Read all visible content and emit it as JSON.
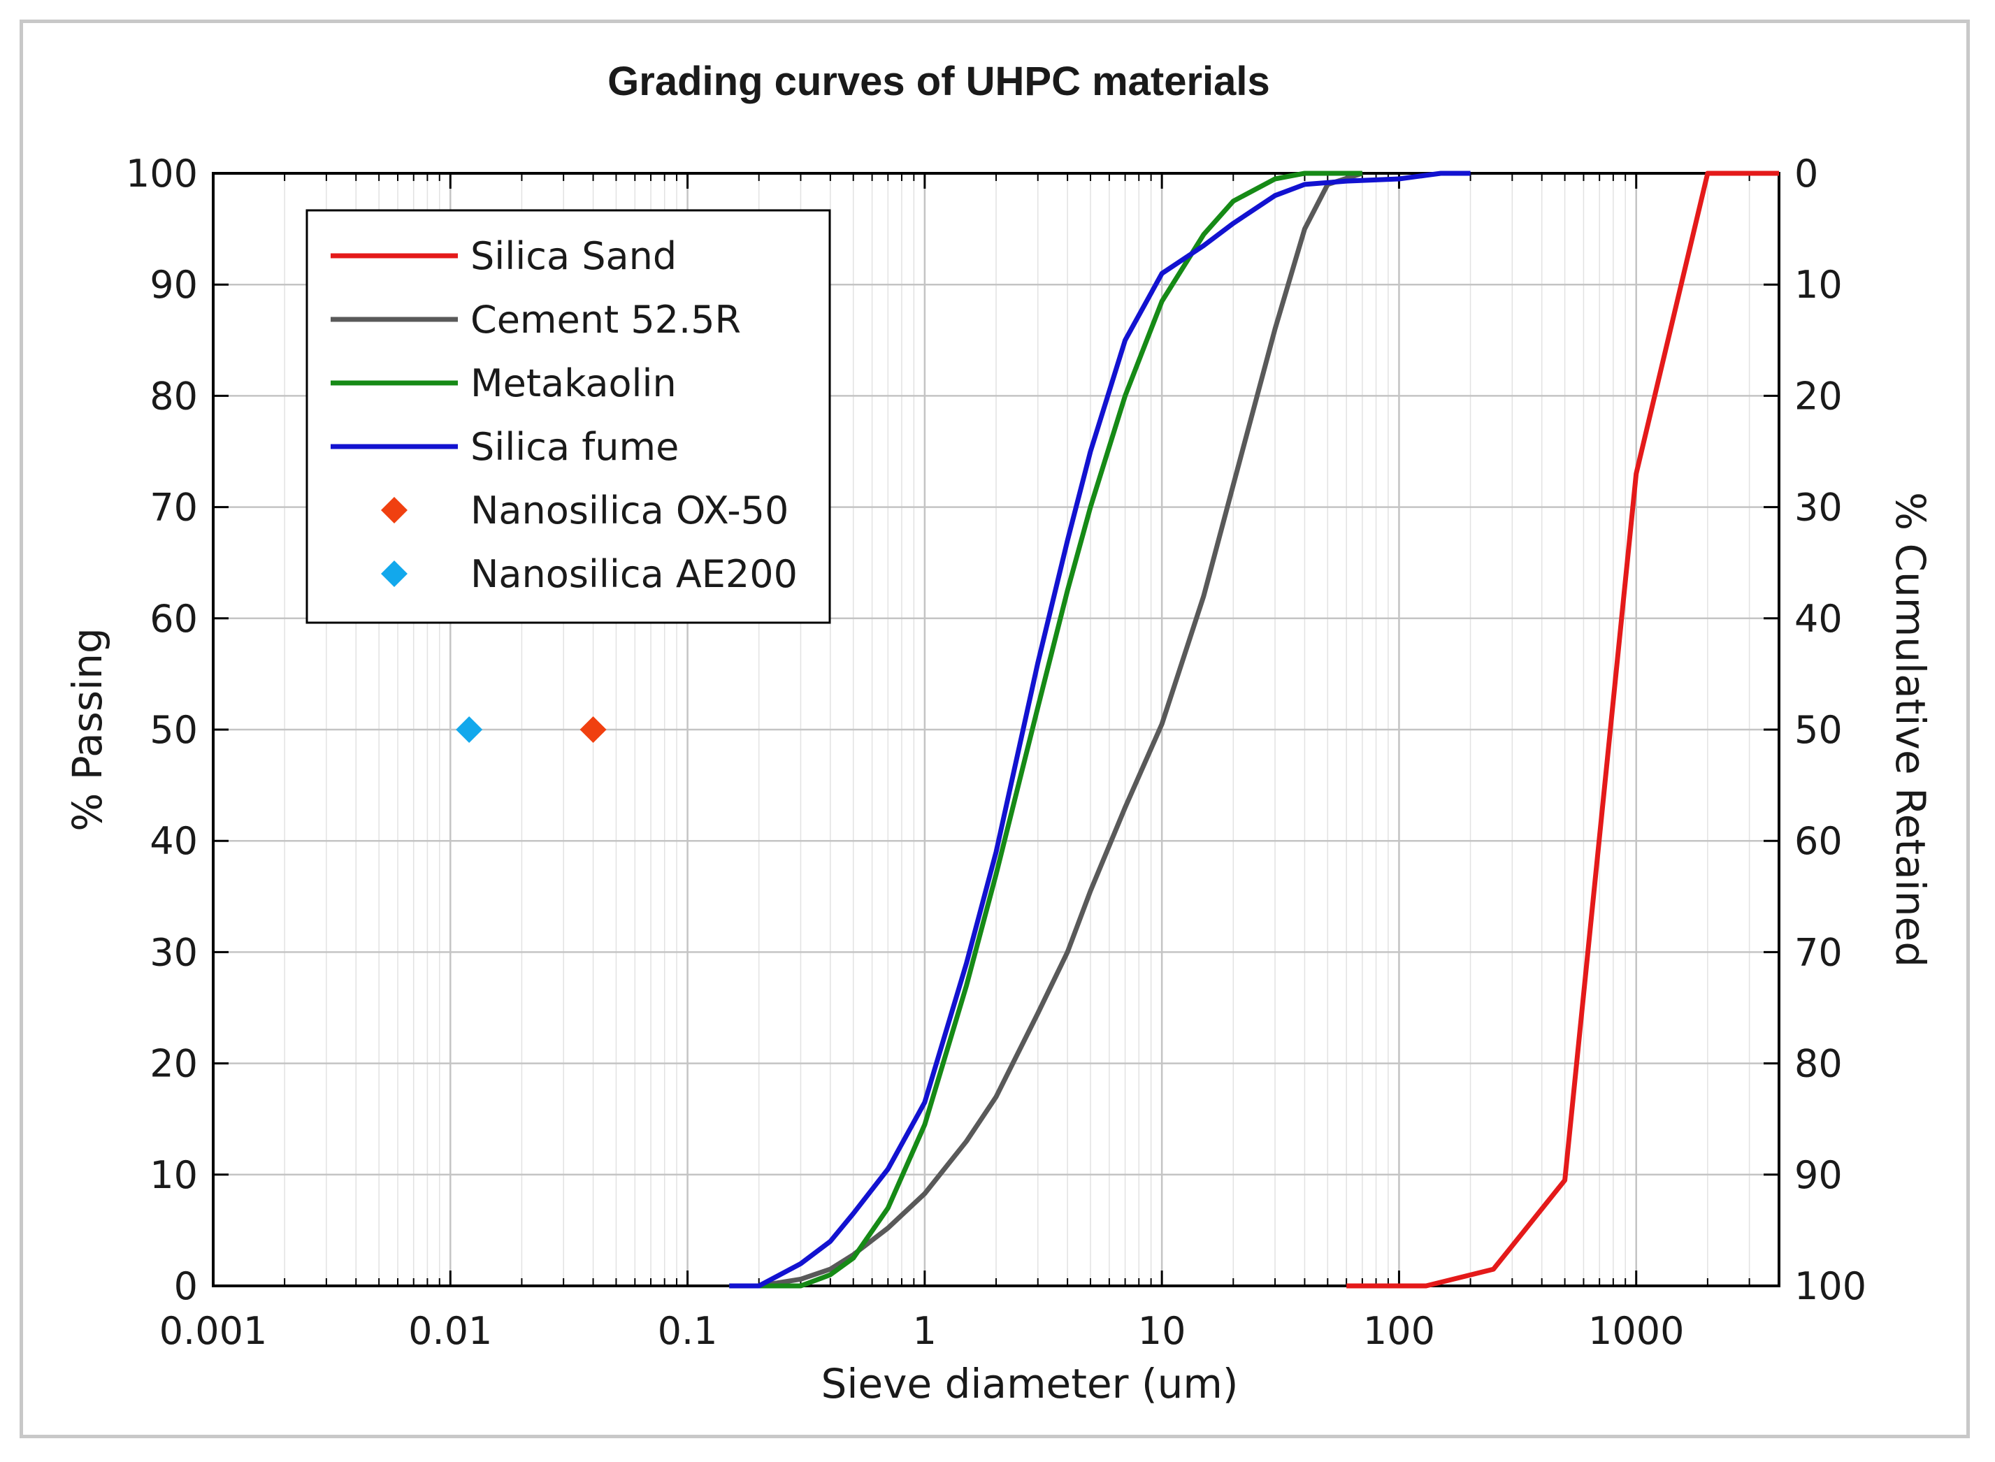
{
  "chart_data": {
    "type": "line",
    "title": "Grading curves of UHPC materials",
    "xlabel": "Sieve diameter (um)",
    "ylabel": "% Passing",
    "y2label": "% Cumulative Retained",
    "xscale": "log",
    "xlim": [
      0.001,
      4000
    ],
    "ylim": [
      0,
      100
    ],
    "grid": true,
    "legend_location": "top-left",
    "x_ticks": [
      0.001,
      0.01,
      0.1,
      1,
      10,
      100,
      1000
    ],
    "x_tick_labels": [
      "0.001",
      "0.01",
      "0.1",
      "1",
      "10",
      "100",
      "1000"
    ],
    "y_ticks": [
      0,
      10,
      20,
      30,
      40,
      50,
      60,
      70,
      80,
      90,
      100
    ],
    "y_tick_labels": [
      "0",
      "10",
      "20",
      "30",
      "40",
      "50",
      "60",
      "70",
      "80",
      "90",
      "100"
    ],
    "y2_tick_labels": [
      "100",
      "90",
      "80",
      "70",
      "60",
      "50",
      "40",
      "30",
      "20",
      "10",
      "0"
    ],
    "series": [
      {
        "name": "Silica Sand",
        "color": "#e41a1a",
        "style": "line",
        "x": [
          60,
          130,
          250,
          500,
          1000,
          2000,
          4000
        ],
        "y": [
          0,
          0,
          1.5,
          9.5,
          73,
          100,
          100
        ]
      },
      {
        "name": "Cement 52.5R",
        "color": "#595959",
        "style": "line",
        "x": [
          0.15,
          0.2,
          0.3,
          0.4,
          0.5,
          0.7,
          1,
          1.5,
          2,
          3,
          4,
          5,
          7,
          10,
          15,
          20,
          30,
          40,
          50,
          70
        ],
        "y": [
          0,
          0,
          0.6,
          1.5,
          2.8,
          5.2,
          8.3,
          13,
          17,
          24.5,
          30,
          35.5,
          43,
          50.5,
          62,
          72,
          86,
          95,
          99,
          100
        ]
      },
      {
        "name": "Metakaolin",
        "color": "#168a16",
        "style": "line",
        "x": [
          0.15,
          0.2,
          0.3,
          0.4,
          0.5,
          0.7,
          1,
          1.5,
          2,
          3,
          4,
          5,
          7,
          10,
          15,
          20,
          30,
          40,
          50,
          70
        ],
        "y": [
          0,
          0,
          0,
          1,
          2.5,
          7,
          14.5,
          27,
          37,
          52,
          62.5,
          70,
          80,
          88.5,
          94.5,
          97.5,
          99.5,
          100,
          100,
          100
        ]
      },
      {
        "name": "Silica fume",
        "color": "#1212d0",
        "style": "line",
        "x": [
          0.15,
          0.2,
          0.3,
          0.4,
          0.5,
          0.7,
          1,
          1.5,
          2,
          3,
          4,
          5,
          7,
          10,
          15,
          20,
          30,
          40,
          60,
          100,
          150,
          200
        ],
        "y": [
          0,
          0,
          2,
          4,
          6.5,
          10.5,
          16.5,
          29,
          39,
          56,
          67,
          75,
          85,
          91,
          93.5,
          95.5,
          98,
          99,
          99.3,
          99.5,
          100,
          100
        ]
      },
      {
        "name": "Nanosilica OX-50",
        "color": "#f04010",
        "style": "marker",
        "x": [
          0.04
        ],
        "y": [
          50
        ]
      },
      {
        "name": "Nanosilica AE200",
        "color": "#12a8ec",
        "style": "marker",
        "x": [
          0.012
        ],
        "y": [
          50
        ]
      }
    ]
  }
}
